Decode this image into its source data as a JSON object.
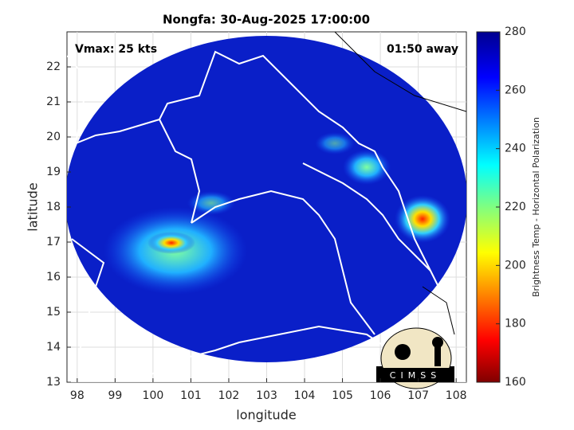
{
  "map": {
    "title": "Nongfa: 30-Aug-2025 17:00:00",
    "vmax": "Vmax: 25 kts",
    "distance": "01:50 away",
    "xlabel": "longitude",
    "ylabel": "latitude",
    "xlim": [
      97.73,
      108.27
    ],
    "ylim": [
      13,
      23
    ],
    "xticks": [
      98,
      99,
      100,
      101,
      102,
      103,
      104,
      105,
      106,
      107,
      108
    ],
    "yticks": [
      13,
      14,
      15,
      16,
      17,
      18,
      19,
      20,
      21,
      22
    ],
    "grid": true,
    "colorbar": {
      "label": "Brightness Temp - Horizontal Polarization",
      "lim": [
        160,
        280
      ],
      "ticks": [
        160,
        180,
        200,
        220,
        240,
        260,
        280
      ]
    },
    "logo": "CIMSS"
  }
}
